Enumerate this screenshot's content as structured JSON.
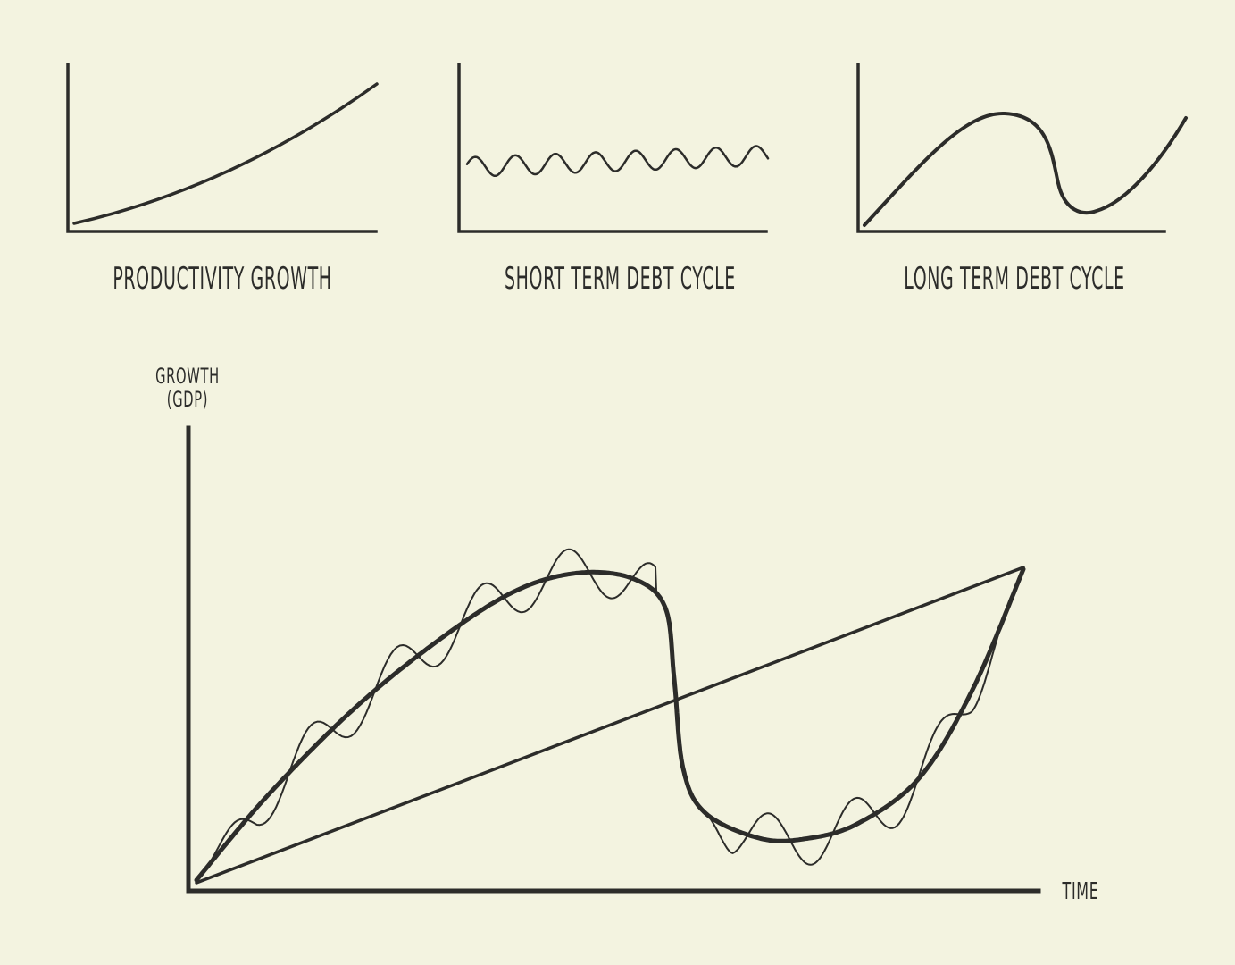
{
  "panels": {
    "productivity": {
      "title": "PRODUCTIVITY GROWTH"
    },
    "short_cycle": {
      "title": "SHORT TERM DEBT CYCLE"
    },
    "long_cycle": {
      "title": "LONG TERM DEBT CYCLE"
    }
  },
  "main_chart": {
    "ylabel_line1": "GROWTH",
    "ylabel_line2": "(GDP)",
    "xlabel": "TIME"
  },
  "colors": {
    "background": "#f3f3e0",
    "ink": "#2c2c2a"
  }
}
